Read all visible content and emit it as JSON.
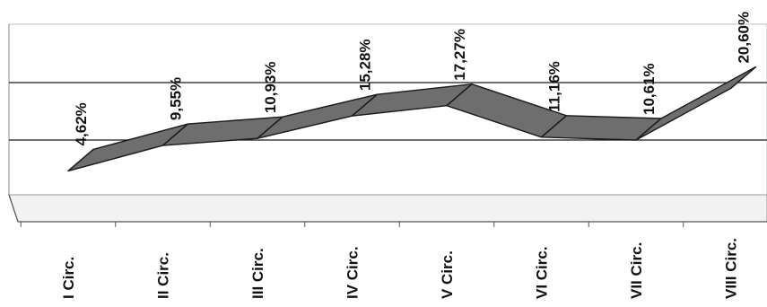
{
  "chart_data": {
    "type": "line",
    "style": "3d-ribbon",
    "categories": [
      "I Circ.",
      "II Circ.",
      "III Circ.",
      "IV Circ.",
      "V Circ.",
      "VI Circ.",
      "VII Circ.",
      "VIII Circ."
    ],
    "values": [
      4.62,
      9.55,
      10.93,
      15.28,
      17.27,
      11.16,
      10.61,
      20.6
    ],
    "data_labels": [
      "4,62%",
      "9,55%",
      "10,93%",
      "15,28%",
      "17,27%",
      "11,16%",
      "10,61%",
      "20,60%"
    ],
    "grid": true,
    "legend": "none",
    "colors": {
      "ribbon_fill": "#6e6e6e",
      "ribbon_stroke": "#1a1a1a",
      "background": "#ffffff",
      "floor": "#f2f2f2",
      "gridline": "#1a1a1a",
      "text": "#111111"
    }
  }
}
